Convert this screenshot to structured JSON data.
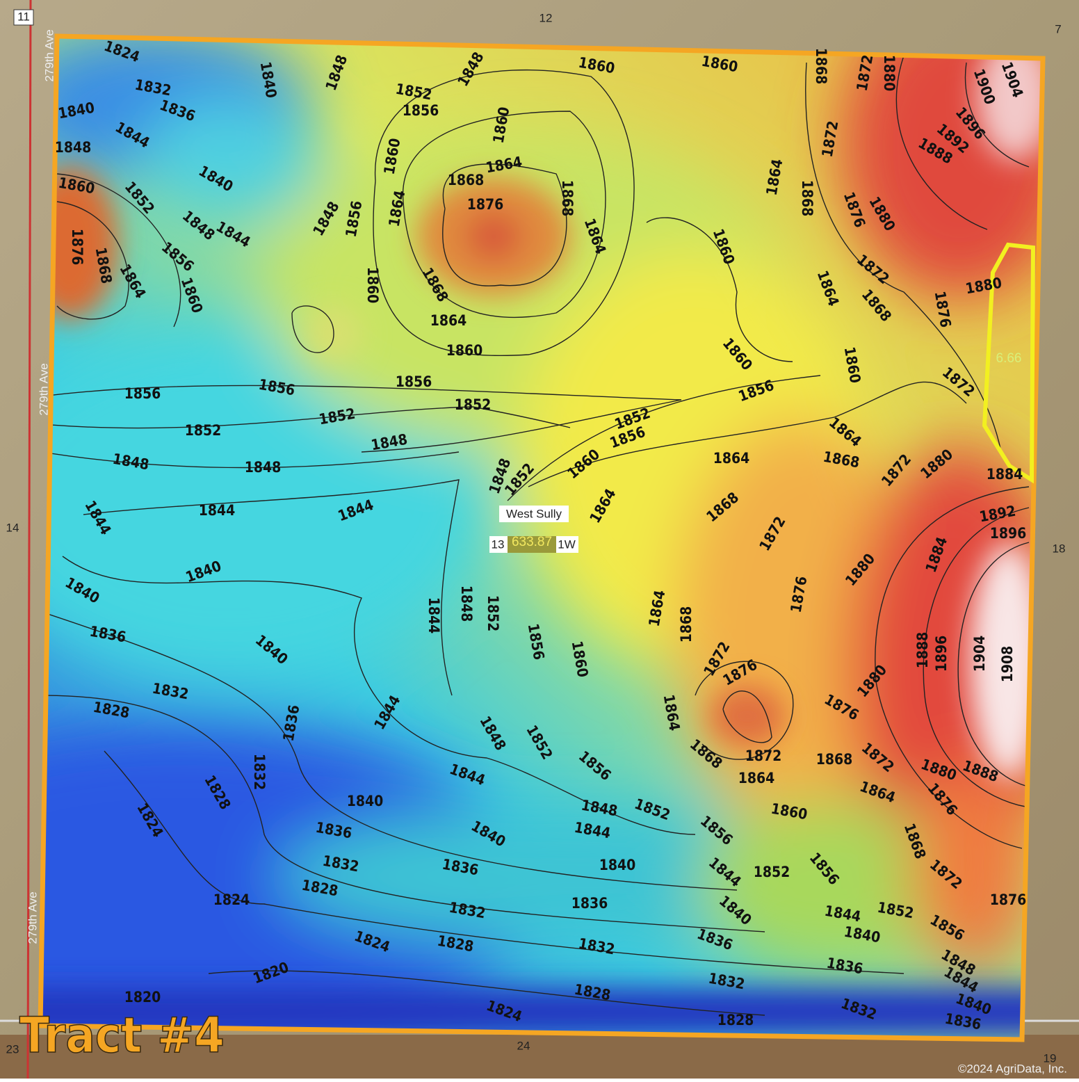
{
  "map": {
    "section_numbers": [
      "11",
      "12",
      "7",
      "14",
      "18",
      "23",
      "24",
      "19"
    ],
    "road_labels": [
      "279th Ave",
      "279th Ave",
      "279th Ave"
    ],
    "place_label": "West Sully",
    "section_label_left": "13",
    "acres": "633.87",
    "section_label_right": "1W",
    "small_area_acres": "6.66",
    "tract_title": "Tract #4",
    "copyright": "©2024 AgriData, Inc.",
    "contour_labels": [
      "1824",
      "1832",
      "1836",
      "1840",
      "1844",
      "1848",
      "1840",
      "1860",
      "1852",
      "1848",
      "1844",
      "1856",
      "1876",
      "1868",
      "1864",
      "1860",
      "1840",
      "1848",
      "1852",
      "1856",
      "1848",
      "1860",
      "1860",
      "1868",
      "1872",
      "1880",
      "1900",
      "1904",
      "1896",
      "1892",
      "1888",
      "1860",
      "1860",
      "1864",
      "1868",
      "1876",
      "1868",
      "1864",
      "1856",
      "1848",
      "1864",
      "1872",
      "1864",
      "1868",
      "1876",
      "1880",
      "1860",
      "1860",
      "1868",
      "1864",
      "1860",
      "1864",
      "1872",
      "1868",
      "1876",
      "1880",
      "1860",
      "1860",
      "1872",
      "1856",
      "1856",
      "1856",
      "1852",
      "1852",
      "1852",
      "1848",
      "1852",
      "1856",
      "1856",
      "1864",
      "1848",
      "1848",
      "1860",
      "1864",
      "1868",
      "1872",
      "1880",
      "1884",
      "1848",
      "1852",
      "1844",
      "1844",
      "1844",
      "1864",
      "1868",
      "1872",
      "1892",
      "1896",
      "1884",
      "1880",
      "1876",
      "1840",
      "1840",
      "1844",
      "1848",
      "1852",
      "1856",
      "1860",
      "1864",
      "1868",
      "1888",
      "1896",
      "1904",
      "1908",
      "1836",
      "1840",
      "1872",
      "1876",
      "1880",
      "1876",
      "1832",
      "1828",
      "1836",
      "1844",
      "1864",
      "1848",
      "1852",
      "1868",
      "1872",
      "1868",
      "1872",
      "1880",
      "1888",
      "1832",
      "1828",
      "1856",
      "1844",
      "1864",
      "1864",
      "1876",
      "1824",
      "1840",
      "1848",
      "1852",
      "1860",
      "1836",
      "1840",
      "1844",
      "1856",
      "1868",
      "1832",
      "1836",
      "1840",
      "1844",
      "1852",
      "1856",
      "1872",
      "1828",
      "1824",
      "1836",
      "1840",
      "1844",
      "1852",
      "1856",
      "1876",
      "1832",
      "1824",
      "1828",
      "1832",
      "1836",
      "1840",
      "1848",
      "1820",
      "1836",
      "1844",
      "1820",
      "1828",
      "1832",
      "1840",
      "1824",
      "1832",
      "1836",
      "1828"
    ]
  }
}
